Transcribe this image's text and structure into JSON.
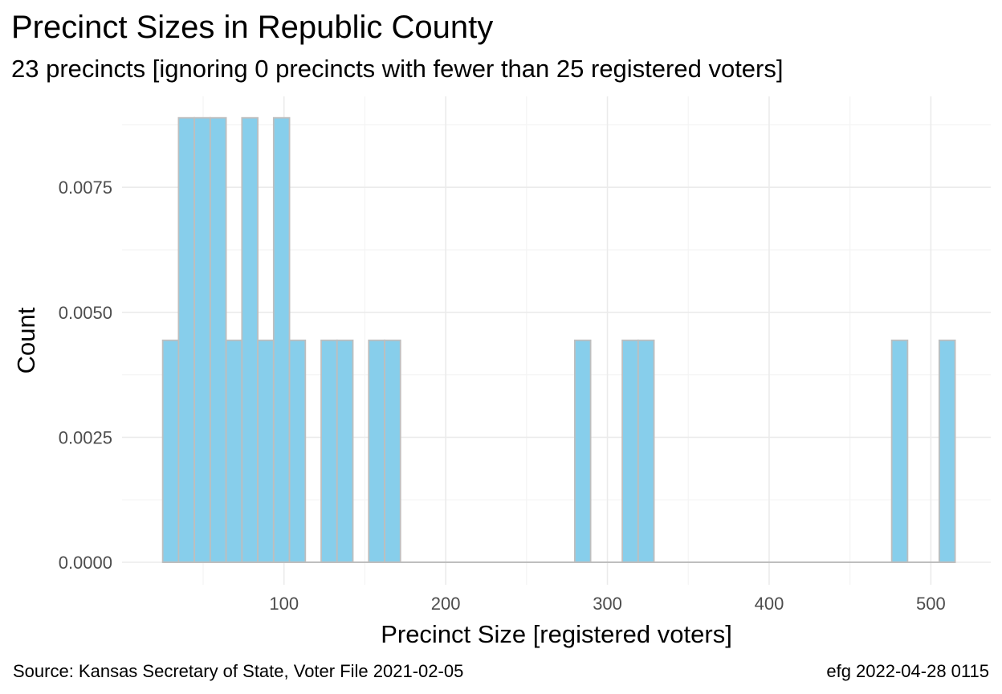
{
  "chart_data": {
    "type": "bar",
    "title": "Precinct Sizes in Republic County",
    "subtitle": "23 precincts [ignoring 0 precincts with fewer than 25 registered voters]",
    "xlabel": "Precinct Size [registered voters]",
    "ylabel": "Count",
    "caption_left": "Source:  Kansas Secretary of State, Voter File  2021-02-05",
    "caption_right": "efg 2022-04-28 0115",
    "xlim": [
      0,
      540
    ],
    "ylim": [
      0,
      0.009
    ],
    "bin_width": 9.8,
    "x_ticks": [
      100,
      200,
      300,
      400,
      500
    ],
    "x_tick_labels": [
      "100",
      "200",
      "300",
      "400",
      "500"
    ],
    "y_ticks": [
      0.0,
      0.0025,
      0.005,
      0.0075
    ],
    "y_tick_labels": [
      "0.0000",
      "0.0025",
      "0.0050",
      "0.0075"
    ],
    "bins": [
      {
        "x0": 25,
        "x1": 34.8,
        "value": 0.00444
      },
      {
        "x0": 34.8,
        "x1": 44.6,
        "value": 0.00889
      },
      {
        "x0": 44.6,
        "x1": 54.4,
        "value": 0.00889
      },
      {
        "x0": 54.4,
        "x1": 64.2,
        "value": 0.00889
      },
      {
        "x0": 64.2,
        "x1": 74.0,
        "value": 0.00444
      },
      {
        "x0": 74.0,
        "x1": 83.8,
        "value": 0.00889
      },
      {
        "x0": 83.8,
        "x1": 93.6,
        "value": 0.00444
      },
      {
        "x0": 93.6,
        "x1": 103.4,
        "value": 0.00889
      },
      {
        "x0": 103.4,
        "x1": 113.2,
        "value": 0.00444
      },
      {
        "x0": 113.2,
        "x1": 123.0,
        "value": 0.0
      },
      {
        "x0": 123.0,
        "x1": 132.8,
        "value": 0.00444
      },
      {
        "x0": 132.8,
        "x1": 142.6,
        "value": 0.00444
      },
      {
        "x0": 142.6,
        "x1": 152.4,
        "value": 0.0
      },
      {
        "x0": 152.4,
        "x1": 162.2,
        "value": 0.00444
      },
      {
        "x0": 162.2,
        "x1": 172.0,
        "value": 0.00444
      },
      {
        "x0": 279.8,
        "x1": 289.6,
        "value": 0.00444
      },
      {
        "x0": 309.2,
        "x1": 319.0,
        "value": 0.00444
      },
      {
        "x0": 319.0,
        "x1": 328.8,
        "value": 0.00444
      },
      {
        "x0": 475.8,
        "x1": 485.6,
        "value": 0.00444
      },
      {
        "x0": 505.2,
        "x1": 515.0,
        "value": 0.00444
      }
    ],
    "baseline_range": [
      25,
      515
    ],
    "colors": {
      "bar_fill": "#87CEEB",
      "bar_stroke": "#BEBEBE",
      "grid_major": "#EBEBEB",
      "grid_minor": "#F4F4F4",
      "baseline": "#BEBEBE"
    }
  }
}
